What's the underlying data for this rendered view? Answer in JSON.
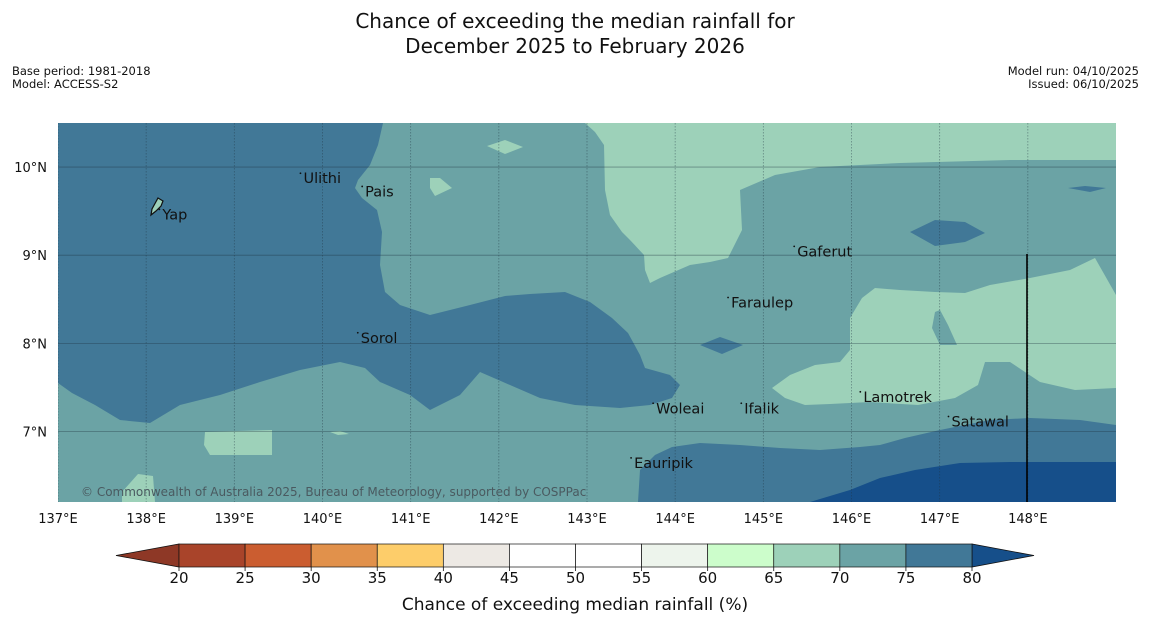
{
  "title": {
    "line1": "Chance of exceeding the median rainfall for",
    "line2": "December 2025 to February 2026"
  },
  "meta": {
    "base_period": "Base period: 1981-2018",
    "model": "Model: ACCESS-S2",
    "model_run": "Model run: 04/10/2025",
    "issued": "Issued: 06/10/2025"
  },
  "map": {
    "lon_range": [
      137,
      149
    ],
    "lat_range": [
      6.2,
      10.5
    ],
    "lon_ticks": [
      "137°E",
      "138°E",
      "139°E",
      "140°E",
      "141°E",
      "142°E",
      "143°E",
      "144°E",
      "145°E",
      "146°E",
      "147°E",
      "148°E"
    ],
    "lat_ticks": [
      "10°N",
      "9°N",
      "8°N",
      "7°N"
    ],
    "places": [
      {
        "name": "Ulithi",
        "lon": 139.75,
        "lat": 9.93
      },
      {
        "name": "Pais",
        "lon": 140.45,
        "lat": 9.78
      },
      {
        "name": "Yap",
        "lon": 138.15,
        "lat": 9.52
      },
      {
        "name": "Gaferut",
        "lon": 145.35,
        "lat": 9.1
      },
      {
        "name": "Faraulep",
        "lon": 144.6,
        "lat": 8.52
      },
      {
        "name": "Sorol",
        "lon": 140.4,
        "lat": 8.12
      },
      {
        "name": "Lamotrek",
        "lon": 146.1,
        "lat": 7.45
      },
      {
        "name": "Woleai",
        "lon": 143.75,
        "lat": 7.32
      },
      {
        "name": "Ifalik",
        "lon": 144.75,
        "lat": 7.32
      },
      {
        "name": "Satawal",
        "lon": 147.1,
        "lat": 7.17
      },
      {
        "name": "Eauripik",
        "lon": 143.5,
        "lat": 6.7
      }
    ],
    "credit": "© Commonwealth of Australia 2025, Bureau of Meteorology, supported by COSPPac",
    "colors": {
      "c65_70": "#9dd1b9",
      "c70_75": "#6ba3a5",
      "c75_80": "#417897",
      "c80p": "#164f8a"
    }
  },
  "colorbar": {
    "title": "Chance of exceeding median rainfall (%)",
    "ticks": [
      "20",
      "25",
      "30",
      "35",
      "40",
      "45",
      "50",
      "55",
      "60",
      "65",
      "70",
      "75",
      "80"
    ],
    "colors": [
      "#a9442a",
      "#cb5d30",
      "#e1914b",
      "#fdcd6a",
      "#ede9e4",
      "#ffffff",
      "#ffffff",
      "#edf4ec",
      "#ccfdcb",
      "#9dd1b9",
      "#6ba3a5",
      "#417897"
    ],
    "under_color": "#8e3826",
    "over_color": "#164f8a"
  }
}
